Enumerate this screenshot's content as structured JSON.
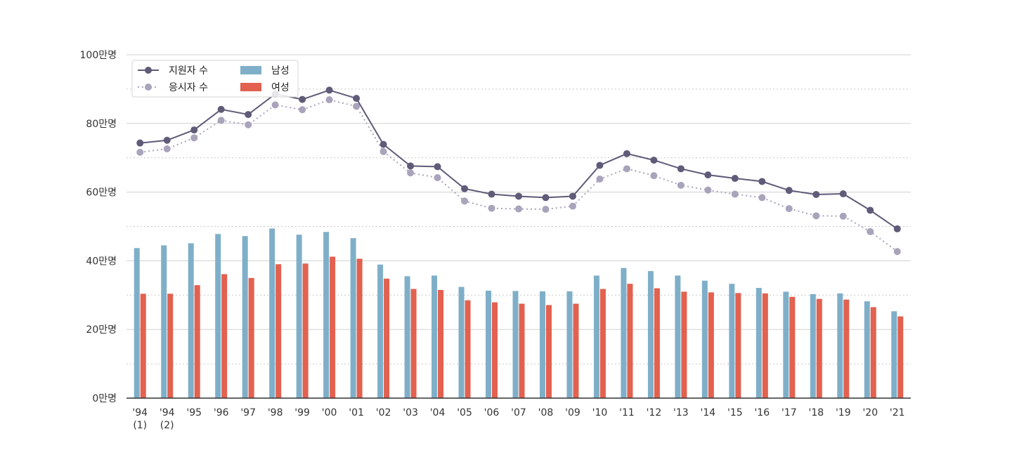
{
  "chart_data": {
    "type": "bar",
    "categories": [
      [
        "'94",
        "(1)"
      ],
      [
        "'94",
        "(2)"
      ],
      [
        "'95"
      ],
      [
        "'96"
      ],
      [
        "'97"
      ],
      [
        "'98"
      ],
      [
        "'99"
      ],
      [
        "'00"
      ],
      [
        "'01"
      ],
      [
        "'02"
      ],
      [
        "'03"
      ],
      [
        "'04"
      ],
      [
        "'05"
      ],
      [
        "'06"
      ],
      [
        "'07"
      ],
      [
        "'08"
      ],
      [
        "'09"
      ],
      [
        "'10"
      ],
      [
        "'11"
      ],
      [
        "'12"
      ],
      [
        "'13"
      ],
      [
        "'14"
      ],
      [
        "'15"
      ],
      [
        "'16"
      ],
      [
        "'17"
      ],
      [
        "'18"
      ],
      [
        "'19"
      ],
      [
        "'20"
      ],
      [
        "'21"
      ]
    ],
    "bar_series": [
      {
        "name": "남성",
        "color": "#7fafc8",
        "values": [
          43.7,
          44.5,
          45.1,
          47.8,
          47.2,
          49.4,
          47.6,
          48.4,
          46.6,
          38.9,
          35.5,
          35.7,
          32.4,
          31.3,
          31.2,
          31.1,
          31.1,
          35.7,
          37.9,
          37.0,
          35.7,
          34.2,
          33.3,
          32.1,
          31.0,
          30.3,
          30.5,
          28.2,
          25.3
        ]
      },
      {
        "name": "여성",
        "color": "#e2614f",
        "values": [
          30.4,
          30.4,
          32.9,
          36.1,
          35.0,
          39.0,
          39.2,
          41.2,
          40.6,
          34.8,
          31.8,
          31.5,
          28.5,
          27.9,
          27.5,
          27.1,
          27.5,
          31.8,
          33.3,
          32.0,
          31.0,
          30.8,
          30.6,
          30.5,
          29.5,
          28.9,
          28.7,
          26.5,
          23.8
        ]
      }
    ],
    "line_series": [
      {
        "name": "지원자 수",
        "color": "#5f5b78",
        "style": "solid",
        "values": [
          74.3,
          75.1,
          78.1,
          84.1,
          82.6,
          88.6,
          87.0,
          89.7,
          87.3,
          73.9,
          67.6,
          67.4,
          61.0,
          59.4,
          58.8,
          58.4,
          58.8,
          67.8,
          71.2,
          69.3,
          66.8,
          65.0,
          64.0,
          63.1,
          60.5,
          59.3,
          59.5,
          54.7,
          49.3
        ]
      },
      {
        "name": "응시자 수",
        "color": "#a9a3bb",
        "style": "dotted",
        "values": [
          71.6,
          72.6,
          75.8,
          80.9,
          79.6,
          85.4,
          84.0,
          86.9,
          85.0,
          71.8,
          65.6,
          64.2,
          57.4,
          55.3,
          55.1,
          55.0,
          55.9,
          63.8,
          66.8,
          64.8,
          62.0,
          60.6,
          59.4,
          58.4,
          55.2,
          53.1,
          53.0,
          48.5,
          42.7
        ]
      }
    ],
    "ylim": [
      0,
      100
    ],
    "yticks": [
      0,
      20,
      40,
      60,
      80,
      100
    ],
    "ytick_labels": [
      "0만명",
      "20만명",
      "40만명",
      "60만명",
      "80만명",
      "100만명"
    ],
    "minor_yticks": [
      10,
      30,
      50,
      70,
      90
    ],
    "grid": true,
    "legend_position": "top-left"
  }
}
